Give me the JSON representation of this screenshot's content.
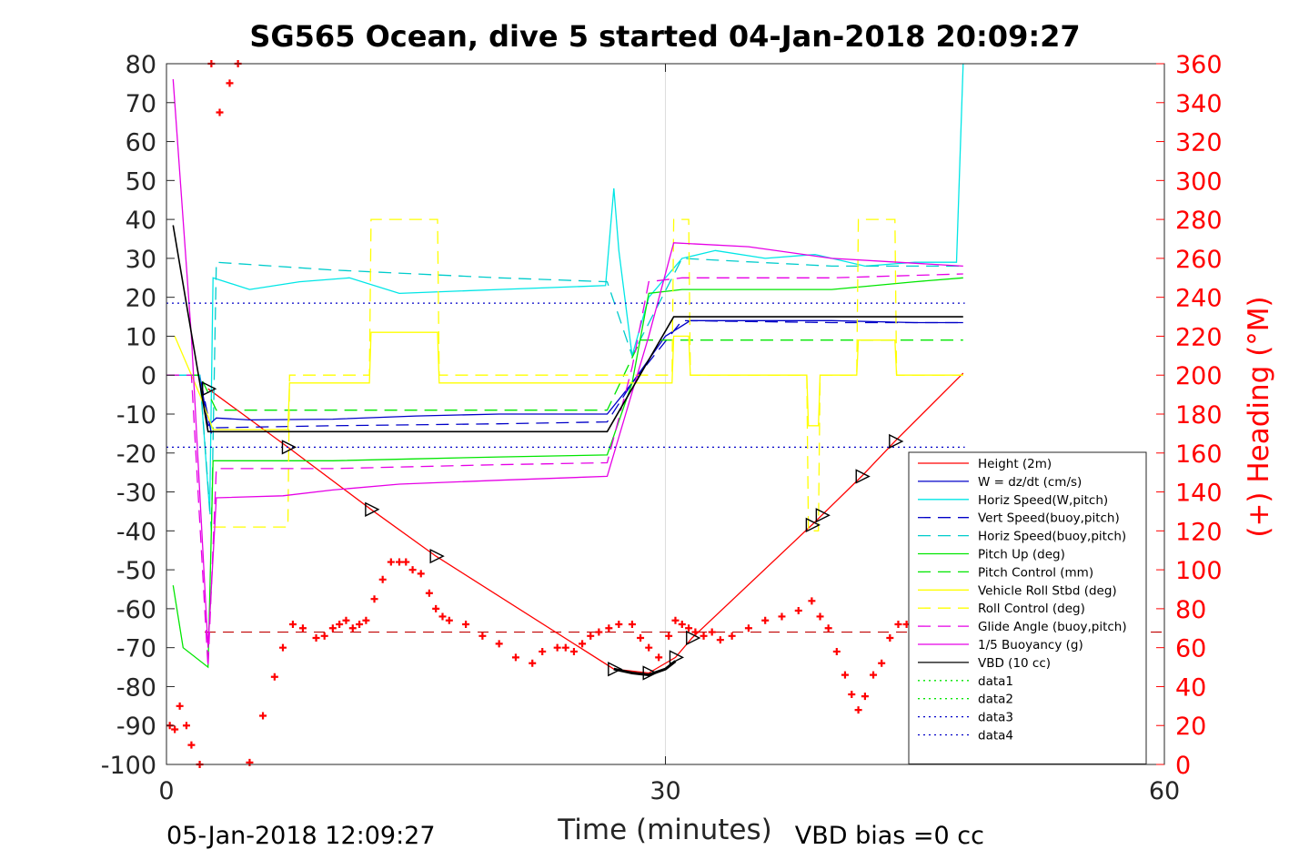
{
  "chart_data": {
    "type": "line",
    "title": "SG565 Ocean, dive 5 started 04-Jan-2018 20:09:27",
    "xlabel": "Time (minutes)",
    "ylabel_right": "(+) Heading (°M)",
    "xlim": [
      0,
      60
    ],
    "ylim": [
      -100,
      80
    ],
    "ylim_right": [
      0,
      360
    ],
    "x_ticks": [
      "0",
      "30",
      "60"
    ],
    "y_ticks": [
      "80",
      "70",
      "60",
      "50",
      "40",
      "30",
      "20",
      "10",
      "0",
      "-10",
      "-20",
      "-30",
      "-40",
      "-50",
      "-60",
      "-70",
      "-80",
      "-90",
      "-100"
    ],
    "y_right_ticks": [
      "360",
      "340",
      "320",
      "300",
      "280",
      "260",
      "240",
      "220",
      "200",
      "180",
      "160",
      "140",
      "120",
      "100",
      "80",
      "60",
      "40",
      "20",
      "0"
    ],
    "grid": "x only (at 30 min)",
    "legend_position": "lower-right",
    "footer_left": "05-Jan-2018 12:09:27",
    "footer_right": "VBD bias =0 cc",
    "colors": {
      "height": "#ff0000",
      "w": "#0000c8",
      "horiz_w": "#00e6e6",
      "vert_buoy": "#0000c8",
      "horiz_buoy": "#00cccc",
      "pitch": "#00e600",
      "pitch_ctrl": "#00e600",
      "roll": "#ffff00",
      "roll_ctrl": "#ffff00",
      "glide": "#e600e6",
      "buoyancy": "#e600e6",
      "vbd": "#000000",
      "heading": "#ff0000"
    },
    "series": [
      {
        "name": "Height (2m)",
        "style": "solid",
        "color": "#ff0000",
        "x": [
          2.5,
          7.3,
          12.3,
          16.2,
          26.9,
          29.0,
          30.6,
          31.6,
          38.8,
          39.4,
          41.8,
          43.8,
          47.9
        ],
        "y": [
          -3.5,
          -18.5,
          -34.5,
          -46.5,
          -75.5,
          -76.5,
          -72.5,
          -67.5,
          -38.5,
          -36.0,
          -26.0,
          -17.0,
          0.5
        ]
      },
      {
        "name": "W = dz/dt (cm/s)",
        "style": "solid",
        "color": "#0000c8",
        "x": [
          0,
          2.0,
          2.5,
          3,
          5,
          10,
          15,
          20,
          26.5,
          28,
          30,
          31.5,
          35,
          40,
          45,
          47.9
        ],
        "y": [
          0,
          0,
          -13,
          -11,
          -11.5,
          -11.3,
          -10.5,
          -10.0,
          -10.0,
          -2,
          10,
          14,
          14,
          14,
          13.5,
          13.5
        ]
      },
      {
        "name": "Horiz Speed(W,pitch)",
        "style": "solid",
        "color": "#00e6e6",
        "x": [
          0,
          2.0,
          2.6,
          2.8,
          5,
          8,
          11,
          14,
          20,
          26.4,
          26.9,
          27.2,
          28,
          29,
          31,
          33,
          36,
          39,
          42,
          45,
          47.5,
          47.9
        ],
        "y": [
          0,
          0,
          -35,
          25,
          22,
          24,
          25,
          21,
          22,
          23,
          48,
          32,
          5,
          20,
          30,
          32,
          30,
          31,
          28,
          29,
          29,
          80
        ]
      },
      {
        "name": "Vert Speed(buoy,pitch)",
        "style": "dashed",
        "color": "#0000c8",
        "x": [
          0,
          2.0,
          2.7,
          3,
          10,
          20,
          26.5,
          28,
          31,
          40,
          47.9
        ],
        "y": [
          0,
          0,
          -15,
          -13.5,
          -13.0,
          -12.5,
          -12.0,
          -2,
          14,
          13.5,
          13.5
        ]
      },
      {
        "name": "Horiz Speed(buoy,pitch)",
        "style": "dashed",
        "color": "#00cccc",
        "x": [
          0,
          2.0,
          2.7,
          3,
          10,
          15,
          20,
          26.5,
          28,
          31,
          40,
          47.9
        ],
        "y": [
          0,
          0,
          -40,
          29,
          27,
          26,
          25,
          24,
          5,
          30,
          28,
          28
        ]
      },
      {
        "name": "Pitch Up (deg)",
        "style": "solid",
        "color": "#00e600",
        "x": [
          0.4,
          1.0,
          2.5,
          2.8,
          3.5,
          10,
          15,
          20,
          26.5,
          28,
          29,
          31,
          40,
          45,
          47.9
        ],
        "y": [
          -54,
          -70,
          -75,
          -22,
          -22,
          -22,
          -21.5,
          -21,
          -20.5,
          -2,
          21,
          22,
          22,
          24,
          25
        ]
      },
      {
        "name": "Pitch Control (mm)",
        "style": "dashed",
        "color": "#00e600",
        "x": [
          0,
          2.0,
          3.0,
          26.5,
          28.5,
          47.9
        ],
        "y": [
          0,
          0,
          -9,
          -9,
          9,
          9
        ]
      },
      {
        "name": "Vehicle Roll Stbd (deg)",
        "style": "solid",
        "color": "#ffff00",
        "x": [
          0.5,
          2,
          2.8,
          7.3,
          7.4,
          12.2,
          12.3,
          16.3,
          16.4,
          30.4,
          30.5,
          31.4,
          31.5,
          38.5,
          38.6,
          39.2,
          39.3,
          41.5,
          41.6,
          43.8,
          43.9,
          47.9
        ],
        "y": [
          10,
          -5,
          -14,
          -14,
          -2,
          -2,
          11,
          11,
          -2,
          -2,
          10,
          10,
          0,
          0,
          -13,
          -13,
          0,
          0,
          9,
          9,
          0,
          0
        ]
      },
      {
        "name": "Roll Control (deg)",
        "style": "dashed",
        "color": "#ffff00",
        "x": [
          2.8,
          7.3,
          7.4,
          12.2,
          12.3,
          16.3,
          16.4,
          30.4,
          30.5,
          31.4,
          31.5,
          38.5,
          38.6,
          39.2,
          39.3,
          41.5,
          41.6,
          43.8,
          43.9,
          47.9
        ],
        "y": [
          -39,
          -39,
          0,
          0,
          40,
          40,
          0,
          0,
          40,
          40,
          0,
          0,
          -40,
          -40,
          0,
          0,
          40,
          40,
          0,
          0
        ]
      },
      {
        "name": "Glide Angle (buoy,pitch)",
        "style": "dashed",
        "color": "#e600e6",
        "x": [
          0,
          1.5,
          2.5,
          3,
          10,
          20,
          26.5,
          28,
          29,
          31,
          40,
          47.9
        ],
        "y": [
          0,
          0,
          -75,
          -24,
          -24,
          -23,
          -22.5,
          2,
          24,
          25,
          25,
          26
        ]
      },
      {
        "name": "1/5 Buoyancy (g)",
        "style": "solid",
        "color": "#e600e6",
        "x": [
          0.4,
          1.5,
          2.5,
          3,
          7,
          10,
          14,
          20,
          26.5,
          29,
          30.5,
          35,
          40,
          44,
          47.9
        ],
        "y": [
          76,
          10,
          -70,
          -31.5,
          -31,
          -29.5,
          -28,
          -27,
          -26,
          10,
          34,
          33,
          30,
          29,
          28
        ]
      },
      {
        "name": "VBD (10 cc)",
        "style": "solid",
        "color": "#000000",
        "x": [
          0.4,
          2.5,
          2.7,
          26.5,
          30.5,
          47.9
        ],
        "y": [
          38.5,
          -14.5,
          -14.5,
          -14.5,
          15,
          15
        ]
      },
      {
        "name": "data1",
        "style": "dotted",
        "color": "#00e600",
        "x": [],
        "y": []
      },
      {
        "name": "data2",
        "style": "dotted",
        "color": "#00e600",
        "x": [],
        "y": []
      },
      {
        "name": "data3",
        "style": "dotted",
        "color": "#0000c8",
        "x": [
          0,
          48
        ],
        "y": [
          -18.5,
          -18.5
        ]
      },
      {
        "name": "data4",
        "style": "dotted",
        "color": "#0000c8",
        "x": [
          0,
          48
        ],
        "y": [
          18.5,
          18.5
        ]
      }
    ],
    "heading_series": {
      "axis": "right",
      "marker": "+",
      "color": "#ff0000",
      "x": [
        0.2,
        0.5,
        0.8,
        1.2,
        1.5,
        2.0,
        2.7,
        3.2,
        3.8,
        4.3,
        5.0,
        5.8,
        6.5,
        7.0,
        7.6,
        8.2,
        9.0,
        9.5,
        10.0,
        10.4,
        10.8,
        11.2,
        11.6,
        12.0,
        12.5,
        13.0,
        13.5,
        14.0,
        14.4,
        14.8,
        15.3,
        15.8,
        16.2,
        16.6,
        17.0,
        18.0,
        19.0,
        20.0,
        21.0,
        22.0,
        22.6,
        23.5,
        24.0,
        24.5,
        25.0,
        25.5,
        26.0,
        26.6,
        27.2,
        28.0,
        28.5,
        29.0,
        29.6,
        30.2,
        30.6,
        31.0,
        31.4,
        31.8,
        32.3,
        32.8,
        33.3,
        34.0,
        35.0,
        36.0,
        37.0,
        38.0,
        38.8,
        39.3,
        39.8,
        40.3,
        40.8,
        41.2,
        41.6,
        42.0,
        42.5,
        43.0,
        43.5,
        44.0,
        44.5
      ],
      "y": [
        20,
        18,
        30,
        20,
        10,
        0,
        360,
        335,
        350,
        360,
        1,
        25,
        45,
        60,
        72,
        70,
        65,
        66,
        70,
        72,
        74,
        70,
        72,
        74,
        85,
        95,
        104,
        104,
        104,
        100,
        98,
        88,
        80,
        76,
        74,
        72,
        66,
        62,
        55,
        52,
        58,
        60,
        60,
        58,
        62,
        66,
        68,
        70,
        72,
        72,
        65,
        60,
        55,
        66,
        74,
        72,
        70,
        68,
        66,
        68,
        64,
        66,
        70,
        74,
        76,
        79,
        84,
        76,
        70,
        58,
        46,
        36,
        28,
        35,
        46,
        52,
        65,
        72,
        72
      ],
      "reference_line": {
        "style": "dashed",
        "color": "#c00000",
        "value": 68
      }
    },
    "markers": {
      "shape": "triangle",
      "color": "#000000",
      "points": [
        {
          "x": 2.5,
          "y": -3.5
        },
        {
          "x": 7.3,
          "y": -18.5
        },
        {
          "x": 12.3,
          "y": -34.5
        },
        {
          "x": 16.2,
          "y": -46.5
        },
        {
          "x": 26.9,
          "y": -75.5
        },
        {
          "x": 29.0,
          "y": -76.5
        },
        {
          "x": 30.6,
          "y": -72.5
        },
        {
          "x": 31.6,
          "y": -67.5
        },
        {
          "x": 38.8,
          "y": -38.5
        },
        {
          "x": 39.4,
          "y": -36.0
        },
        {
          "x": 41.8,
          "y": -26.0
        },
        {
          "x": 43.8,
          "y": -17.0
        }
      ]
    },
    "curve_bottom": {
      "color": "#000000",
      "x": [
        26.9,
        28.0,
        29.0,
        30.0,
        30.6
      ],
      "y": [
        -75.5,
        -76.5,
        -77.0,
        -75.5,
        -73.5
      ]
    }
  }
}
